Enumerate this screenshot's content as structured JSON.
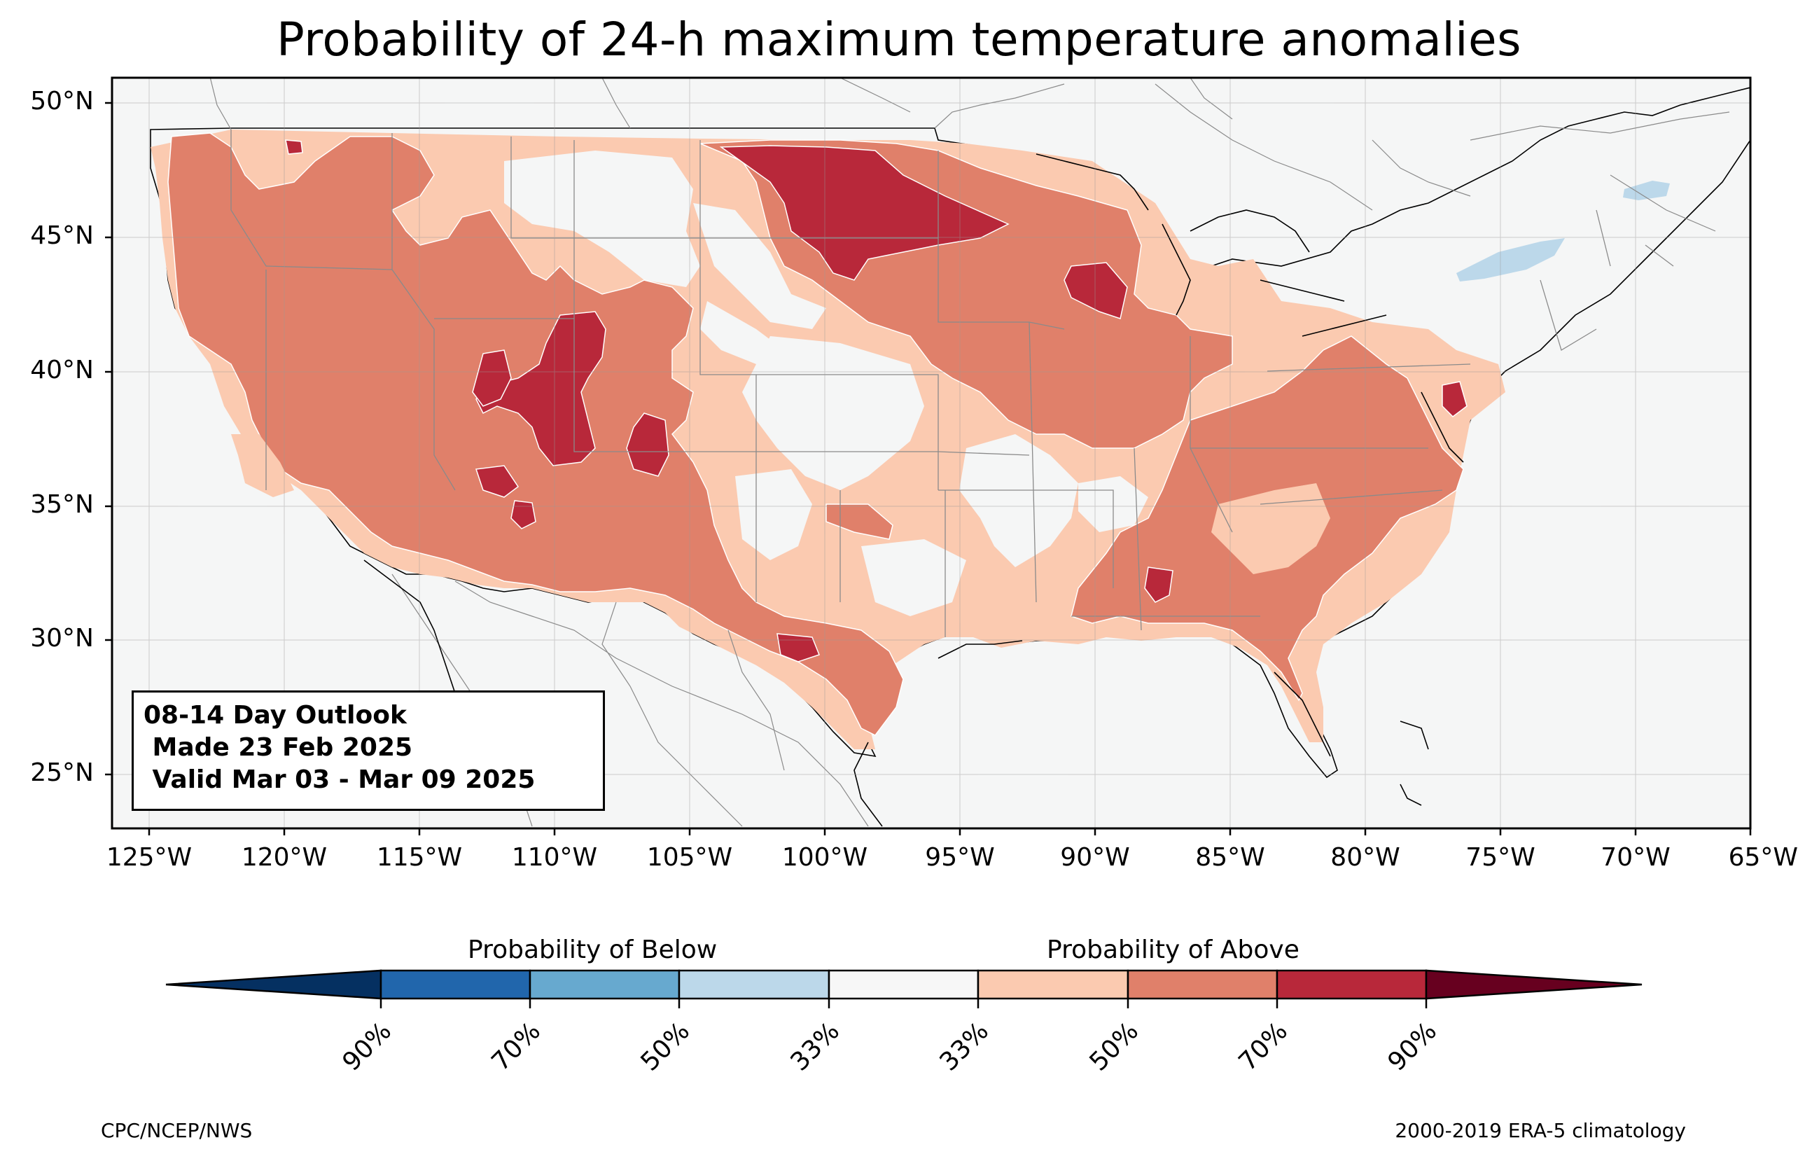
{
  "title": "Probability of 24-h maximum temperature anomalies",
  "outlook": {
    "line1": "08-14 Day Outlook",
    "line2": " Made 23 Feb 2025",
    "line3": " Valid Mar 03 - Mar 09 2025"
  },
  "axes": {
    "lat_labels": [
      "50°N",
      "45°N",
      "40°N",
      "35°N",
      "30°N",
      "25°N"
    ],
    "lon_labels": [
      "125°W",
      "120°W",
      "115°W",
      "110°W",
      "105°W",
      "100°W",
      "95°W",
      "90°W",
      "85°W",
      "80°W",
      "75°W",
      "70°W",
      "65°W"
    ],
    "lat_range": [
      23,
      51
    ],
    "lon_range": [
      -125,
      -65
    ],
    "grid": true
  },
  "colorbar": {
    "below_label": "Probability of Below",
    "above_label": "Probability of Above",
    "tick_labels": [
      "90%",
      "70%",
      "50%",
      "33%",
      "33%",
      "50%",
      "70%",
      "90%"
    ],
    "colors": [
      "#053061",
      "#2166ac",
      "#67a9cf",
      "#bcd8ea",
      "#f7f7f7",
      "#fbcab0",
      "#e0806a",
      "#b8283a",
      "#67001f"
    ]
  },
  "colors": {
    "ocean": "#f5f6f6",
    "near_normal": "#f5f6f6",
    "above_33": "#fbcab0",
    "above_50": "#e0806a",
    "above_70": "#b8283a",
    "below_33": "#bcd8ea"
  },
  "footer": {
    "left": "CPC/NCEP/NWS",
    "right": "2000-2019 ERA-5 climatology"
  }
}
